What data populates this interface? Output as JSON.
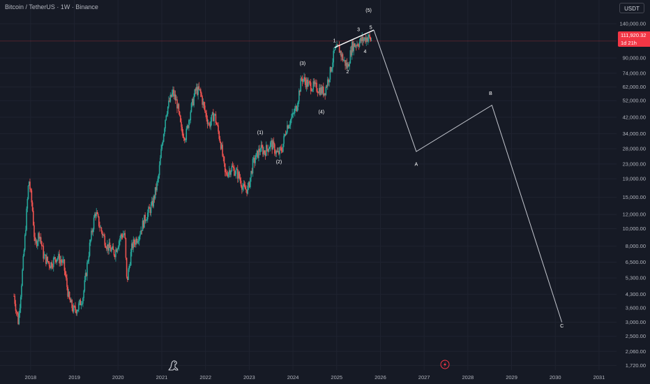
{
  "header": {
    "symbol_title": "Bitcoin / TetherUS · 1W · Binance",
    "currency_badge": "USDT",
    "last_price": "111,920.32",
    "countdown": "1d 21h"
  },
  "colors": {
    "background": "#161a25",
    "grid": "#1f2330",
    "axis_text": "#b2b5be",
    "candle_up": "#26a69a",
    "candle_down": "#ef5350",
    "projection_line": "#c5c8d0",
    "price_line": "#f23645"
  },
  "icons": {
    "bottom_left_logo": "dinosaur-icon",
    "bottom_center": "lightning-icon"
  },
  "chart_data": {
    "type": "candlestick",
    "scale": "log",
    "x_axis": {
      "tick_labels": [
        "2018",
        "2019",
        "2020",
        "2021",
        "2022",
        "2023",
        "2024",
        "2025",
        "2026",
        "2027",
        "2028",
        "2029",
        "2030",
        "2031"
      ],
      "range": [
        2017.3,
        2031.4
      ]
    },
    "y_axis": {
      "tick_labels": [
        "140,000.00",
        "90,000.00",
        "74,000.00",
        "62,000.00",
        "52,000.00",
        "42,000.00",
        "34,000.00",
        "28,000.00",
        "23,000.00",
        "19,000.00",
        "15,000.00",
        "12,000.00",
        "10,000.00",
        "8,000.00",
        "6,500.00",
        "5,300.00",
        "4,300.00",
        "3,600.00",
        "3,000.00",
        "2,500.00",
        "2,060.00",
        "1,720.00"
      ],
      "tick_values": [
        140000,
        90000,
        74000,
        62000,
        52000,
        42000,
        34000,
        28000,
        23000,
        19000,
        15000,
        12000,
        10000,
        8000,
        6500,
        5300,
        4300,
        3600,
        3000,
        2500,
        2060,
        1720
      ],
      "range": [
        1620,
        190000
      ],
      "side": "right"
    },
    "price_path": [
      [
        2017.62,
        4200
      ],
      [
        2017.72,
        3000
      ],
      [
        2017.85,
        7500
      ],
      [
        2017.96,
        19000
      ],
      [
        2018.04,
        13000
      ],
      [
        2018.1,
        8000
      ],
      [
        2018.2,
        9500
      ],
      [
        2018.3,
        7000
      ],
      [
        2018.45,
        6300
      ],
      [
        2018.6,
        7000
      ],
      [
        2018.75,
        6400
      ],
      [
        2018.88,
        4000
      ],
      [
        2018.98,
        3500
      ],
      [
        2019.08,
        3600
      ],
      [
        2019.2,
        4200
      ],
      [
        2019.35,
        8000
      ],
      [
        2019.48,
        12500
      ],
      [
        2019.6,
        10000
      ],
      [
        2019.75,
        8000
      ],
      [
        2019.92,
        7300
      ],
      [
        2020.05,
        9000
      ],
      [
        2020.15,
        9500
      ],
      [
        2020.2,
        5000
      ],
      [
        2020.32,
        8000
      ],
      [
        2020.48,
        9300
      ],
      [
        2020.62,
        11500
      ],
      [
        2020.78,
        13500
      ],
      [
        2020.92,
        19000
      ],
      [
        2021.0,
        29000
      ],
      [
        2021.1,
        45000
      ],
      [
        2021.25,
        58000
      ],
      [
        2021.35,
        50000
      ],
      [
        2021.45,
        35000
      ],
      [
        2021.55,
        33000
      ],
      [
        2021.65,
        45000
      ],
      [
        2021.78,
        60000
      ],
      [
        2021.88,
        58000
      ],
      [
        2021.98,
        46000
      ],
      [
        2022.08,
        38000
      ],
      [
        2022.2,
        44000
      ],
      [
        2022.35,
        30000
      ],
      [
        2022.45,
        20000
      ],
      [
        2022.6,
        22000
      ],
      [
        2022.75,
        20000
      ],
      [
        2022.88,
        16500
      ],
      [
        2022.98,
        16800
      ],
      [
        2023.08,
        23000
      ],
      [
        2023.25,
        28000
      ],
      [
        2023.35,
        27000
      ],
      [
        2023.5,
        30000
      ],
      [
        2023.65,
        26000
      ],
      [
        2023.75,
        28000
      ],
      [
        2023.85,
        37000
      ],
      [
        2023.98,
        42000
      ],
      [
        2024.08,
        48000
      ],
      [
        2024.2,
        70000
      ],
      [
        2024.35,
        64000
      ],
      [
        2024.5,
        62000
      ],
      [
        2024.62,
        60000
      ],
      [
        2024.72,
        58000
      ],
      [
        2024.85,
        75000
      ],
      [
        2024.95,
        98000
      ],
      [
        2025.05,
        102000
      ],
      [
        2025.15,
        88000
      ],
      [
        2025.25,
        80000
      ],
      [
        2025.35,
        105000
      ],
      [
        2025.5,
        110000
      ],
      [
        2025.62,
        115000
      ],
      [
        2025.72,
        118000
      ],
      [
        2025.8,
        112000
      ]
    ],
    "wave_trendline": [
      [
        2024.95,
        103000
      ],
      [
        2025.85,
        129000
      ]
    ],
    "projection_path": [
      [
        2025.85,
        129000
      ],
      [
        2026.82,
        27000
      ],
      [
        2028.55,
        49000
      ],
      [
        2030.15,
        3000
      ]
    ],
    "price_line": 111920.32,
    "wave_labels": [
      {
        "label": "(1)",
        "x": 2023.25,
        "y": 33800
      },
      {
        "label": "(2)",
        "x": 2023.68,
        "y": 23200
      },
      {
        "label": "(3)",
        "x": 2024.22,
        "y": 82500
      },
      {
        "label": "(4)",
        "x": 2024.65,
        "y": 44000
      },
      {
        "label": "(5)",
        "x": 2025.73,
        "y": 163000
      },
      {
        "label": "1",
        "x": 2024.95,
        "y": 110500
      },
      {
        "label": "2",
        "x": 2025.25,
        "y": 74000
      },
      {
        "label": "3",
        "x": 2025.5,
        "y": 127500
      },
      {
        "label": "4",
        "x": 2025.65,
        "y": 96000
      },
      {
        "label": "5",
        "x": 2025.78,
        "y": 131000
      },
      {
        "label": "A",
        "x": 2026.82,
        "y": 22500
      },
      {
        "label": "B",
        "x": 2028.52,
        "y": 56000
      },
      {
        "label": "C",
        "x": 2030.15,
        "y": 2800
      }
    ]
  }
}
